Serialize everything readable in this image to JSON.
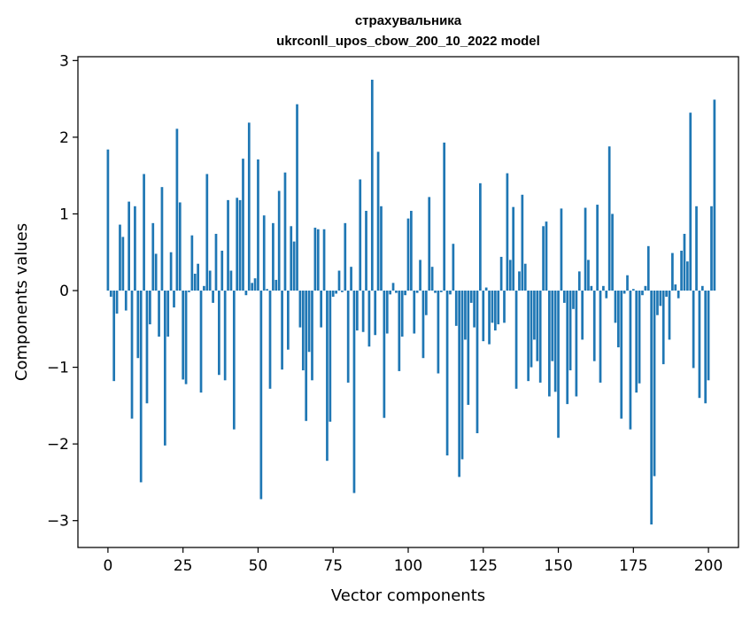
{
  "chart_data": {
    "type": "bar",
    "title": "страхувальника\nukrconll_upos_cbow_200_10_2022 model",
    "title_lines": [
      "страхувальника",
      "ukrconll_upos_cbow_200_10_2022 model"
    ],
    "xlabel": "Vector components",
    "ylabel": "Components values",
    "xlim": [
      -10,
      210
    ],
    "ylim": [
      -3.35,
      3.05
    ],
    "x_ticks": [
      0,
      25,
      50,
      75,
      100,
      125,
      150,
      175,
      200
    ],
    "y_ticks": [
      -3,
      -2,
      -1,
      0,
      1,
      2,
      3
    ],
    "x_tick_labels": [
      "0",
      "25",
      "50",
      "75",
      "100",
      "125",
      "150",
      "175",
      "200"
    ],
    "y_tick_labels": [
      "−3",
      "−2",
      "−1",
      "0",
      "1",
      "2",
      "3"
    ],
    "bar_color": "#1f77b4",
    "grid": false,
    "values": [
      1.84,
      -0.08,
      -1.18,
      -0.3,
      0.86,
      0.7,
      -0.26,
      1.16,
      -1.67,
      1.1,
      -0.88,
      -2.5,
      1.52,
      -1.47,
      -0.44,
      0.88,
      0.48,
      -0.6,
      1.35,
      -2.02,
      -0.6,
      0.5,
      -0.22,
      2.11,
      1.15,
      -1.16,
      -1.22,
      -0.02,
      0.72,
      0.22,
      0.35,
      -1.33,
      0.06,
      1.52,
      0.26,
      -0.16,
      0.74,
      -1.1,
      0.52,
      -1.17,
      1.18,
      0.26,
      -1.81,
      1.21,
      1.18,
      1.72,
      -0.06,
      2.19,
      0.1,
      0.16,
      1.71,
      -2.72,
      0.98,
      0.02,
      -1.28,
      0.88,
      0.14,
      1.3,
      -1.03,
      1.54,
      -0.77,
      0.84,
      0.64,
      2.43,
      -0.48,
      -1.04,
      -1.7,
      -0.8,
      -1.17,
      0.82,
      0.8,
      -0.48,
      0.8,
      -2.22,
      -1.71,
      -0.08,
      -0.04,
      0.26,
      -0.02,
      0.88,
      -1.2,
      0.31,
      -2.64,
      -0.52,
      1.45,
      -0.54,
      1.04,
      -0.73,
      2.75,
      -0.58,
      1.81,
      1.1,
      -1.66,
      -0.56,
      -0.05,
      0.1,
      -0.03,
      -1.05,
      -0.6,
      -0.06,
      0.94,
      1.04,
      -0.56,
      -0.03,
      0.4,
      -0.88,
      -0.32,
      1.22,
      0.31,
      -0.03,
      -1.08,
      -0.02,
      1.93,
      -2.15,
      -0.05,
      0.61,
      -0.46,
      -2.43,
      -2.2,
      -0.64,
      -1.49,
      -0.16,
      -0.48,
      -1.86,
      1.4,
      -0.66,
      0.04,
      -0.7,
      -0.42,
      -0.52,
      -0.44,
      0.44,
      -0.42,
      1.53,
      0.4,
      1.09,
      -1.28,
      0.25,
      1.25,
      0.35,
      -1.18,
      -1.0,
      -0.64,
      -0.92,
      -1.2,
      0.84,
      0.9,
      -1.38,
      -0.92,
      -1.32,
      -1.92,
      1.07,
      -0.16,
      -1.48,
      -1.04,
      -0.24,
      -1.38,
      0.25,
      -0.64,
      1.08,
      0.4,
      0.06,
      -0.92,
      1.12,
      -1.2,
      0.06,
      -0.1,
      1.88,
      1.0,
      -0.42,
      -0.74,
      -1.67,
      -0.04,
      0.2,
      -1.81,
      0.02,
      -1.33,
      -1.21,
      -0.06,
      0.06,
      0.58,
      -3.05,
      -2.42,
      -0.32,
      -0.2,
      -0.96,
      -0.08,
      -0.64,
      0.49,
      0.08,
      -0.1,
      0.52,
      0.74,
      0.38,
      2.32,
      -1.01,
      1.1,
      -1.4,
      0.06,
      -1.47,
      -1.17,
      1.1,
      2.49
    ]
  }
}
